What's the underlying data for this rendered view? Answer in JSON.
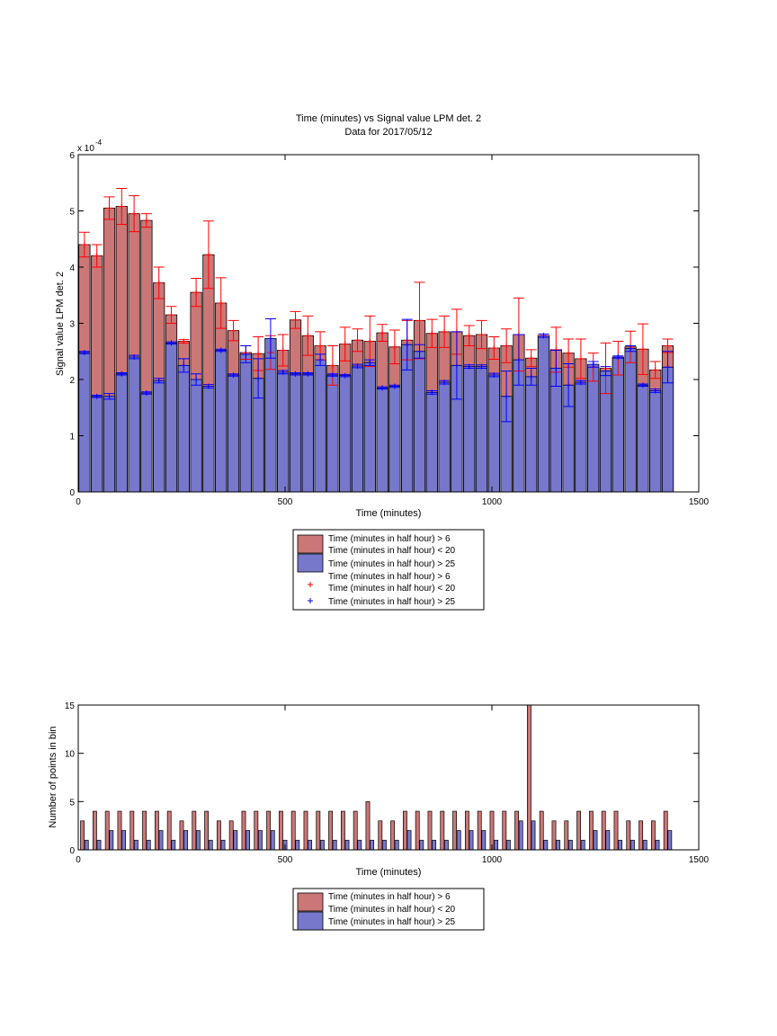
{
  "chart_data": [
    {
      "type": "bar",
      "title": "Time (minutes) vs Signal value LPM det. 2",
      "subtitle": "Data for 2017/05/12",
      "xlabel": "Time (minutes)",
      "ylabel": "Signal value LPM det. 2",
      "y_exponent_label": "x 10",
      "y_exponent_value": "-4",
      "xlim": [
        0,
        1500
      ],
      "ylim": [
        0,
        6
      ],
      "y_scale_factor": 0.0001,
      "xticks": [
        0,
        500,
        1000,
        1500
      ],
      "yticks": [
        0,
        1,
        2,
        3,
        4,
        5,
        6
      ],
      "bar_width": 27,
      "grid": false,
      "legend_position": "below plot",
      "legend": [
        {
          "text": "Time (minutes in half hour) > 6\nTime (minutes in half hour) < 20",
          "kind": "patch",
          "color": "#cc7777"
        },
        {
          "text": "Time (minutes in half hour) > 25",
          "kind": "patch",
          "color": "#7777cc"
        },
        {
          "text": "Time (minutes in half hour) > 6\nTime (minutes in half hour) < 20",
          "kind": "marker",
          "color": "#ff0000"
        },
        {
          "text": "Time (minutes in half hour) > 25",
          "kind": "marker",
          "color": "#0000ff"
        }
      ],
      "x": [
        15,
        45,
        75,
        105,
        135,
        165,
        195,
        225,
        255,
        285,
        315,
        345,
        375,
        405,
        435,
        465,
        495,
        525,
        555,
        585,
        615,
        645,
        675,
        705,
        735,
        765,
        795,
        825,
        855,
        885,
        915,
        945,
        975,
        1005,
        1035,
        1065,
        1095,
        1125,
        1155,
        1185,
        1215,
        1245,
        1275,
        1305,
        1335,
        1365,
        1395,
        1425
      ],
      "series": [
        {
          "name": "Time (minutes in half hour) > 6\nTime (minutes in half hour) < 20",
          "color": "#cc7777",
          "errcolor": "#ff0000",
          "values": [
            4.4,
            4.2,
            5.05,
            5.08,
            4.95,
            4.83,
            3.72,
            3.15,
            2.68,
            3.55,
            4.22,
            3.36,
            2.87,
            2.48,
            2.46,
            2.48,
            2.52,
            3.06,
            2.78,
            2.6,
            2.25,
            2.63,
            2.7,
            2.68,
            2.83,
            2.58,
            2.7,
            3.05,
            2.82,
            2.85,
            2.85,
            2.78,
            2.8,
            2.56,
            2.6,
            2.8,
            2.38,
            2.78,
            2.53,
            2.47,
            2.37,
            2.22,
            2.2,
            2.38,
            2.58,
            2.54,
            2.17,
            2.6
          ],
          "err": [
            0.22,
            0.2,
            0.2,
            0.32,
            0.32,
            0.12,
            0.28,
            0.15,
            0.03,
            0.25,
            0.6,
            0.45,
            0.18,
            0.12,
            0.3,
            0.3,
            0.28,
            0.15,
            0.35,
            0.25,
            0.35,
            0.3,
            0.2,
            0.45,
            0.15,
            0.3,
            0.35,
            0.68,
            0.25,
            0.28,
            0.4,
            0.18,
            0.25,
            0.2,
            0.3,
            0.65,
            0.15,
            0.0,
            0.4,
            0.25,
            0.35,
            0.25,
            0.45,
            0.3,
            0.28,
            0.45,
            0.15,
            0.12
          ]
        },
        {
          "name": "Time (minutes in half hour) > 25",
          "color": "#7777cc",
          "errcolor": "#0000ff",
          "values": [
            2.48,
            1.7,
            1.7,
            2.1,
            2.4,
            1.76,
            1.98,
            2.65,
            2.25,
            2.0,
            1.88,
            2.52,
            2.08,
            2.45,
            2.02,
            2.73,
            2.13,
            2.1,
            2.1,
            2.35,
            2.08,
            2.07,
            2.24,
            2.3,
            1.85,
            1.88,
            2.62,
            2.5,
            1.77,
            1.95,
            2.25,
            2.23,
            2.23,
            2.08,
            1.7,
            2.35,
            2.05,
            2.78,
            2.2,
            1.9,
            1.95,
            2.27,
            2.15,
            2.4,
            2.55,
            1.9,
            1.8,
            2.22
          ],
          "err": [
            0.02,
            0.02,
            0.05,
            0.02,
            0.03,
            0.02,
            0.04,
            0.02,
            0.12,
            0.1,
            0.03,
            0.02,
            0.02,
            0.15,
            0.35,
            0.35,
            0.03,
            0.02,
            0.02,
            0.1,
            0.02,
            0.02,
            0.03,
            0.05,
            0.02,
            0.02,
            0.45,
            0.12,
            0.03,
            0.03,
            0.6,
            0.03,
            0.03,
            0.03,
            0.45,
            0.45,
            0.15,
            0.03,
            0.32,
            0.38,
            0.03,
            0.05,
            0.08,
            0.02,
            0.05,
            0.02,
            0.03,
            0.28
          ]
        }
      ]
    },
    {
      "type": "bar",
      "title": "",
      "xlabel": "Time (minutes)",
      "ylabel": "Number of points in bin",
      "xlim": [
        0,
        1500
      ],
      "ylim": [
        0,
        15
      ],
      "xticks": [
        0,
        500,
        1000,
        1500
      ],
      "yticks": [
        0,
        5,
        10,
        15
      ],
      "bar_width": 9,
      "grid": false,
      "legend_position": "below plot",
      "legend": [
        {
          "text": "Time (minutes in half hour) > 6\nTime (minutes in half hour) < 20",
          "kind": "patch",
          "color": "#cc7777"
        },
        {
          "text": "Time (minutes in half hour) > 25",
          "kind": "patch",
          "color": "#7777cc"
        }
      ],
      "x": [
        15,
        45,
        75,
        105,
        135,
        165,
        195,
        225,
        255,
        285,
        315,
        345,
        375,
        405,
        435,
        465,
        495,
        525,
        555,
        585,
        615,
        645,
        675,
        705,
        735,
        765,
        795,
        825,
        855,
        885,
        915,
        945,
        975,
        1005,
        1035,
        1065,
        1095,
        1125,
        1155,
        1185,
        1215,
        1245,
        1275,
        1305,
        1335,
        1365,
        1395,
        1425
      ],
      "series": [
        {
          "name": "Time (minutes in half hour) > 6\nTime (minutes in half hour) < 20",
          "color": "#cc7777",
          "offset": -5,
          "values": [
            3,
            4,
            4,
            4,
            4,
            4,
            4,
            4,
            3,
            4,
            4,
            3,
            3,
            4,
            4,
            4,
            4,
            4,
            4,
            4,
            4,
            4,
            4,
            5,
            3,
            3,
            4,
            4,
            4,
            4,
            4,
            4,
            4,
            4,
            4,
            4,
            15,
            4,
            3,
            3,
            4,
            4,
            4,
            4,
            3,
            3,
            3,
            4
          ]
        },
        {
          "name": "Time (minutes in half hour) > 25",
          "color": "#7777cc",
          "offset": 5,
          "values": [
            1,
            1,
            2,
            2,
            1,
            1,
            2,
            1,
            2,
            2,
            1,
            1,
            2,
            2,
            2,
            2,
            1,
            1,
            1,
            1,
            1,
            1,
            1,
            1,
            1,
            1,
            2,
            1,
            1,
            1,
            2,
            2,
            2,
            1,
            1,
            3,
            3,
            1,
            1,
            1,
            1,
            2,
            2,
            1,
            1,
            1,
            1,
            2
          ]
        }
      ]
    }
  ]
}
